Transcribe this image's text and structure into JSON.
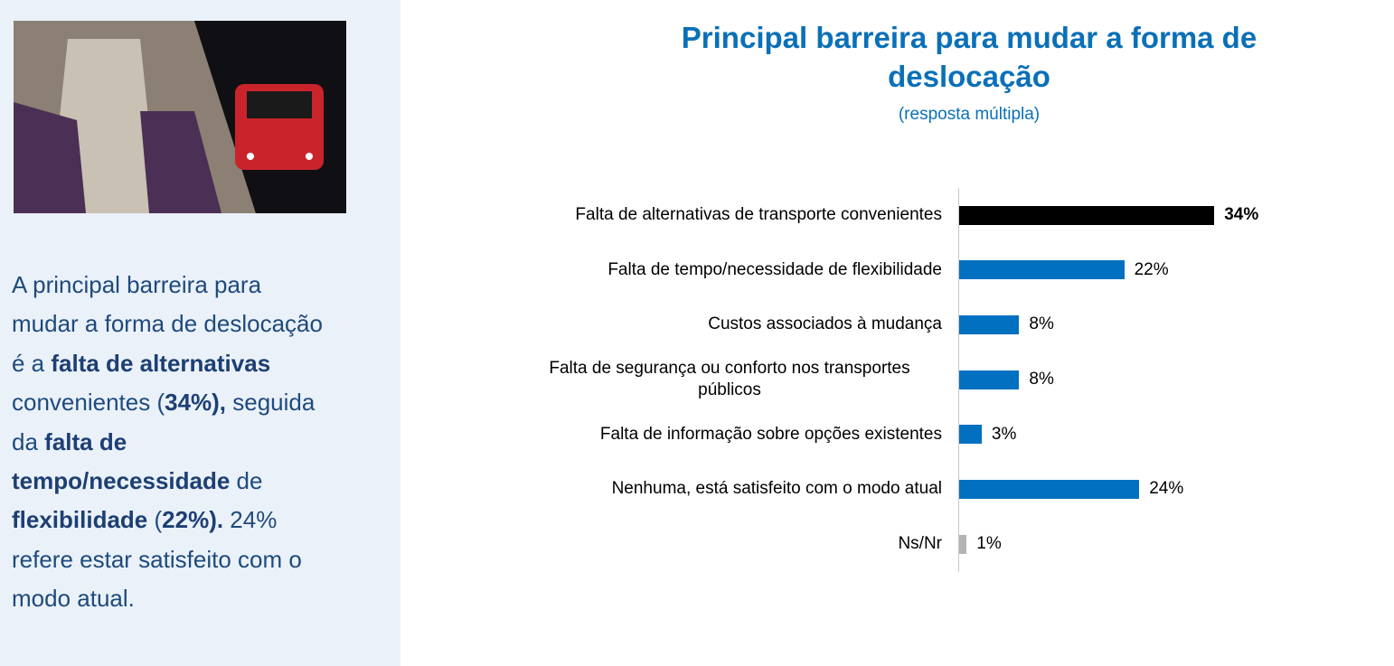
{
  "sidebar": {
    "text_runs": [
      {
        "text": "A principal barreira para mudar a forma de deslocação é a ",
        "bold": false
      },
      {
        "text": "falta de alternativas",
        "bold": true
      },
      {
        "text": " convenientes (",
        "bold": false
      },
      {
        "text": "34%),",
        "bold": true
      },
      {
        "text": " seguida da ",
        "bold": false
      },
      {
        "text": "falta de tempo/necessidade",
        "bold": true
      },
      {
        "text": " de ",
        "bold": false
      },
      {
        "text": "flexibilidade",
        "bold": true
      },
      {
        "text": " (",
        "bold": false
      },
      {
        "text": "22%).",
        "bold": true
      },
      {
        "text": " 24% refere estar satisfeito com o modo atual.",
        "bold": false
      }
    ]
  },
  "chart_data": {
    "type": "bar",
    "orientation": "horizontal",
    "title": "Principal barreira para mudar a forma de deslocação",
    "subtitle": "(resposta múltipla)",
    "categories": [
      "Falta de alternativas de transporte convenientes",
      "Falta de tempo/necessidade de flexibilidade",
      "Custos associados à mudança",
      "Falta de segurança ou conforto nos transportes públicos",
      "Falta de informação sobre opções existentes",
      "Nenhuma, está satisfeito com o modo atual",
      "Ns/Nr"
    ],
    "values": [
      34,
      22,
      8,
      8,
      3,
      24,
      1
    ],
    "value_labels": [
      "34%",
      "22%",
      "8%",
      "8%",
      "3%",
      "24%",
      "1%"
    ],
    "value_label_bold": [
      true,
      false,
      false,
      false,
      false,
      false,
      false
    ],
    "colors": [
      "#000000",
      "#0070c0",
      "#0070c0",
      "#0070c0",
      "#0070c0",
      "#0070c0",
      "#b3b3b3"
    ]
  }
}
